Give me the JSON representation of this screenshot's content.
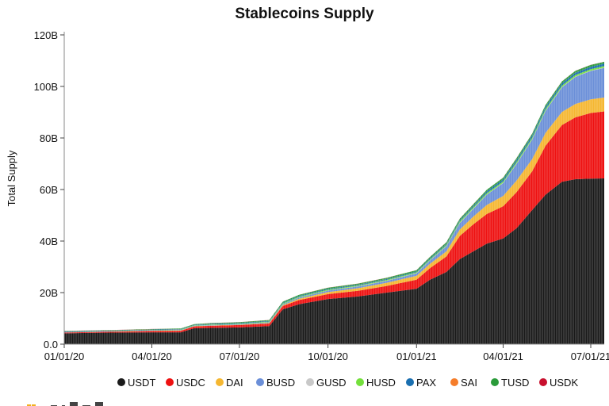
{
  "chart_data": {
    "type": "area",
    "title": "Stablecoins Supply",
    "ylabel": "Total Supply",
    "xlabel": "",
    "y_ticks": [
      "0.0",
      "20B",
      "40B",
      "60B",
      "80B",
      "100B",
      "120B"
    ],
    "ylim": [
      0,
      120
    ],
    "y_unit": "B",
    "x_ticks": [
      "01/01/20",
      "04/01/20",
      "07/01/20",
      "10/01/20",
      "01/01/21",
      "04/01/21",
      "07/01/21"
    ],
    "x_range": [
      "2020-01-01",
      "2021-07-15"
    ],
    "stacked": true,
    "legend_position": "bottom",
    "x": [
      "2020-01-01",
      "2020-02-01",
      "2020-03-01",
      "2020-04-01",
      "2020-05-01",
      "2020-05-15",
      "2020-06-01",
      "2020-07-01",
      "2020-08-01",
      "2020-08-15",
      "2020-09-01",
      "2020-10-01",
      "2020-11-01",
      "2020-12-01",
      "2021-01-01",
      "2021-01-15",
      "2021-02-01",
      "2021-02-15",
      "2021-03-01",
      "2021-03-15",
      "2021-04-01",
      "2021-04-15",
      "2021-05-01",
      "2021-05-15",
      "2021-06-01",
      "2021-06-15",
      "2021-07-01",
      "2021-07-15"
    ],
    "series": [
      {
        "name": "USDT",
        "color": "#1a1a1a",
        "values": [
          4.2,
          4.4,
          4.5,
          4.6,
          4.6,
          6.2,
          6.3,
          6.5,
          7.0,
          13.5,
          15.5,
          17.5,
          18.5,
          20.0,
          21.5,
          25.0,
          28.0,
          33.0,
          36.0,
          39.0,
          41.0,
          45.0,
          52.0,
          58.0,
          63.0,
          64.0,
          64.2,
          64.3
        ]
      },
      {
        "name": "USDC",
        "color": "#ee1111",
        "values": [
          0.3,
          0.3,
          0.4,
          0.5,
          0.6,
          0.7,
          0.8,
          0.9,
          1.0,
          1.3,
          1.6,
          1.9,
          2.2,
          2.6,
          3.5,
          4.5,
          6.0,
          9.0,
          10.5,
          11.5,
          12.5,
          14.0,
          15.0,
          19.0,
          22.0,
          24.0,
          25.5,
          26.0
        ]
      },
      {
        "name": "DAI",
        "color": "#f5b731",
        "values": [
          0.05,
          0.05,
          0.08,
          0.1,
          0.1,
          0.1,
          0.12,
          0.15,
          0.2,
          0.3,
          0.5,
          0.8,
          1.0,
          1.2,
          1.5,
          1.7,
          2.0,
          2.5,
          3.0,
          3.5,
          4.0,
          4.5,
          4.8,
          5.0,
          5.1,
          5.2,
          5.3,
          5.4
        ]
      },
      {
        "name": "BUSD",
        "color": "#6b8fd8",
        "values": [
          0.1,
          0.1,
          0.1,
          0.15,
          0.15,
          0.15,
          0.2,
          0.2,
          0.3,
          0.4,
          0.5,
          0.6,
          0.7,
          0.8,
          1.0,
          1.3,
          2.0,
          2.5,
          3.0,
          4.0,
          5.0,
          6.5,
          7.5,
          8.5,
          9.5,
          10.5,
          11.0,
          11.5
        ]
      },
      {
        "name": "GUSD",
        "color": "#c8c8c8",
        "values": [
          0.01,
          0.01,
          0.01,
          0.01,
          0.01,
          0.01,
          0.01,
          0.01,
          0.01,
          0.02,
          0.03,
          0.05,
          0.05,
          0.06,
          0.08,
          0.08,
          0.1,
          0.1,
          0.1,
          0.1,
          0.12,
          0.12,
          0.12,
          0.12,
          0.12,
          0.12,
          0.12,
          0.12
        ]
      },
      {
        "name": "HUSD",
        "color": "#74e03c",
        "values": [
          0.05,
          0.05,
          0.06,
          0.1,
          0.15,
          0.15,
          0.2,
          0.2,
          0.25,
          0.3,
          0.3,
          0.3,
          0.3,
          0.3,
          0.3,
          0.35,
          0.4,
          0.5,
          0.5,
          0.5,
          0.5,
          0.6,
          0.6,
          0.6,
          0.6,
          0.6,
          0.6,
          0.6
        ]
      },
      {
        "name": "PAX",
        "color": "#1a6fb0",
        "values": [
          0.2,
          0.2,
          0.2,
          0.2,
          0.2,
          0.2,
          0.25,
          0.25,
          0.25,
          0.25,
          0.3,
          0.3,
          0.3,
          0.3,
          0.3,
          0.35,
          0.4,
          0.5,
          0.6,
          0.7,
          0.8,
          0.8,
          0.9,
          0.9,
          0.9,
          0.9,
          0.9,
          0.9
        ]
      },
      {
        "name": "SAI",
        "color": "#f57d2a",
        "values": [
          0.05,
          0.05,
          0.04,
          0.04,
          0.04,
          0.03,
          0.03,
          0.03,
          0.03,
          0.03,
          0.02,
          0.02,
          0.02,
          0.02,
          0.02,
          0.02,
          0.02,
          0.02,
          0.02,
          0.02,
          0.02,
          0.02,
          0.02,
          0.02,
          0.02,
          0.02,
          0.02,
          0.02
        ]
      },
      {
        "name": "TUSD",
        "color": "#2a9b3a",
        "values": [
          0.15,
          0.15,
          0.15,
          0.15,
          0.2,
          0.2,
          0.25,
          0.25,
          0.3,
          0.35,
          0.4,
          0.4,
          0.4,
          0.45,
          0.5,
          0.55,
          0.6,
          0.6,
          0.6,
          0.6,
          0.65,
          0.7,
          0.7,
          0.7,
          0.7,
          0.7,
          0.7,
          0.7
        ]
      },
      {
        "name": "USDK",
        "color": "#c8102e",
        "values": [
          0.03,
          0.03,
          0.03,
          0.03,
          0.03,
          0.03,
          0.03,
          0.03,
          0.03,
          0.03,
          0.03,
          0.03,
          0.03,
          0.03,
          0.03,
          0.03,
          0.03,
          0.03,
          0.03,
          0.03,
          0.03,
          0.03,
          0.03,
          0.03,
          0.03,
          0.03,
          0.03,
          0.03
        ]
      }
    ]
  }
}
